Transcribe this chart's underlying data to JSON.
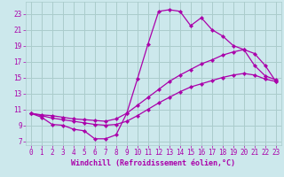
{
  "background_color": "#cce8ec",
  "grid_color": "#aacccc",
  "line_color": "#aa00aa",
  "marker_color": "#aa00aa",
  "xlabel": "Windchill (Refroidissement éolien,°C)",
  "xlim": [
    -0.5,
    23.5
  ],
  "ylim": [
    6.5,
    24.5
  ],
  "xticks": [
    0,
    1,
    2,
    3,
    4,
    5,
    6,
    7,
    8,
    9,
    10,
    11,
    12,
    13,
    14,
    15,
    16,
    17,
    18,
    19,
    20,
    21,
    22,
    23
  ],
  "yticks": [
    7,
    9,
    11,
    13,
    15,
    17,
    19,
    21,
    23
  ],
  "series1_x": [
    0,
    1,
    2,
    3,
    4,
    5,
    6,
    7,
    8,
    9,
    10,
    11,
    12,
    13,
    14,
    15,
    16,
    17,
    18,
    19,
    20,
    21,
    22,
    23
  ],
  "series1_y": [
    10.5,
    10.0,
    9.1,
    9.0,
    8.5,
    8.3,
    7.3,
    7.3,
    7.8,
    10.5,
    14.8,
    19.2,
    23.3,
    23.5,
    23.3,
    21.5,
    22.5,
    21.0,
    20.2,
    19.0,
    18.5,
    16.5,
    15.2,
    14.7
  ],
  "series2_x": [
    0,
    1,
    2,
    3,
    4,
    5,
    6,
    7,
    8,
    9,
    10,
    11,
    12,
    13,
    14,
    15,
    16,
    17,
    18,
    19,
    20,
    21,
    22,
    23
  ],
  "series2_y": [
    10.5,
    10.3,
    10.2,
    10.0,
    9.8,
    9.7,
    9.6,
    9.5,
    9.8,
    10.5,
    11.5,
    12.5,
    13.5,
    14.5,
    15.3,
    16.0,
    16.7,
    17.2,
    17.8,
    18.2,
    18.5,
    18.0,
    16.5,
    14.5
  ],
  "series3_x": [
    0,
    1,
    2,
    3,
    4,
    5,
    6,
    7,
    8,
    9,
    10,
    11,
    12,
    13,
    14,
    15,
    16,
    17,
    18,
    19,
    20,
    21,
    22,
    23
  ],
  "series3_y": [
    10.5,
    10.2,
    9.9,
    9.7,
    9.5,
    9.3,
    9.1,
    9.0,
    9.1,
    9.5,
    10.2,
    11.0,
    11.8,
    12.5,
    13.2,
    13.8,
    14.2,
    14.6,
    15.0,
    15.3,
    15.5,
    15.3,
    14.8,
    14.5
  ],
  "font_size": 6,
  "tick_font_size": 5.5
}
